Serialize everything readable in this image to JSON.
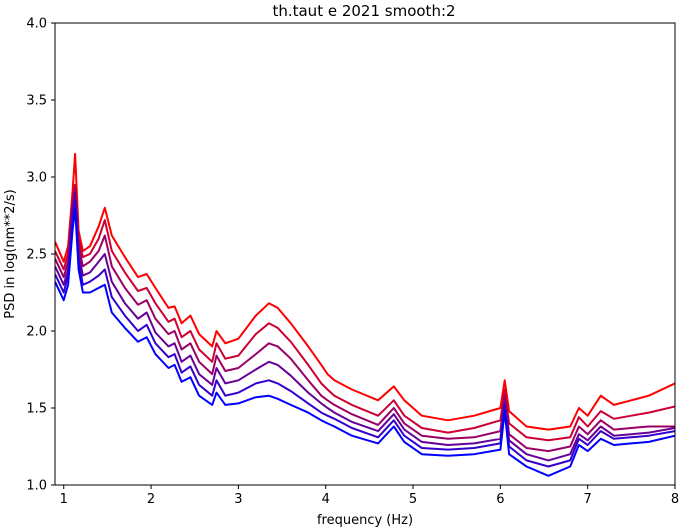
{
  "chart_data": {
    "type": "line",
    "title": "th.taut e 2021 smooth:2",
    "xlabel": "frequency (Hz)",
    "ylabel": "PSD in log(nm**2/s)",
    "xlim": [
      0.9,
      8
    ],
    "ylim": [
      1.0,
      4.0
    ],
    "grid": false,
    "legend": "none",
    "x_ticks": [
      1,
      2,
      3,
      4,
      5,
      6,
      7,
      8
    ],
    "x_tick_labels": [
      "1",
      "2",
      "3",
      "4",
      "5",
      "6",
      "7",
      "8"
    ],
    "y_ticks": [
      1.0,
      1.5,
      2.0,
      2.5,
      3.0,
      3.5,
      4.0
    ],
    "y_tick_labels": [
      "1.0",
      "1.5",
      "2.0",
      "2.5",
      "3.0",
      "3.5",
      "4.0"
    ],
    "x": [
      0.9,
      1.0,
      1.05,
      1.1,
      1.13,
      1.17,
      1.22,
      1.3,
      1.4,
      1.47,
      1.55,
      1.7,
      1.85,
      1.95,
      2.05,
      2.2,
      2.27,
      2.35,
      2.45,
      2.55,
      2.7,
      2.75,
      2.85,
      3.0,
      3.2,
      3.35,
      3.45,
      3.6,
      3.8,
      3.95,
      4.02,
      4.1,
      4.3,
      4.6,
      4.78,
      4.9,
      5.1,
      5.4,
      5.7,
      6.0,
      6.05,
      6.1,
      6.3,
      6.55,
      6.8,
      6.9,
      7.0,
      7.15,
      7.3,
      7.5,
      7.7,
      8.0
    ],
    "series": [
      {
        "color": "#ff0000",
        "values": [
          2.58,
          2.45,
          2.55,
          2.9,
          3.15,
          2.65,
          2.52,
          2.55,
          2.68,
          2.8,
          2.62,
          2.48,
          2.35,
          2.37,
          2.28,
          2.15,
          2.16,
          2.05,
          2.1,
          1.98,
          1.9,
          2.0,
          1.92,
          1.95,
          2.1,
          2.18,
          2.15,
          2.05,
          1.9,
          1.78,
          1.72,
          1.68,
          1.62,
          1.55,
          1.64,
          1.55,
          1.45,
          1.42,
          1.45,
          1.5,
          1.68,
          1.48,
          1.38,
          1.36,
          1.38,
          1.5,
          1.45,
          1.58,
          1.52,
          1.55,
          1.58,
          1.66
        ]
      },
      {
        "color": "#cc0033",
        "values": [
          2.52,
          2.4,
          2.5,
          2.85,
          2.95,
          2.6,
          2.48,
          2.5,
          2.6,
          2.72,
          2.52,
          2.38,
          2.26,
          2.28,
          2.18,
          2.06,
          2.08,
          1.96,
          2.0,
          1.88,
          1.8,
          1.92,
          1.82,
          1.84,
          1.98,
          2.05,
          2.02,
          1.93,
          1.78,
          1.66,
          1.62,
          1.58,
          1.52,
          1.45,
          1.55,
          1.45,
          1.37,
          1.34,
          1.37,
          1.42,
          1.62,
          1.4,
          1.31,
          1.29,
          1.31,
          1.44,
          1.38,
          1.48,
          1.43,
          1.45,
          1.47,
          1.51
        ]
      },
      {
        "color": "#990066",
        "values": [
          2.47,
          2.35,
          2.45,
          2.82,
          2.93,
          2.55,
          2.42,
          2.45,
          2.52,
          2.62,
          2.42,
          2.28,
          2.17,
          2.2,
          2.08,
          1.98,
          2.0,
          1.88,
          1.92,
          1.8,
          1.72,
          1.84,
          1.74,
          1.76,
          1.85,
          1.92,
          1.9,
          1.82,
          1.68,
          1.58,
          1.55,
          1.52,
          1.46,
          1.39,
          1.5,
          1.4,
          1.32,
          1.3,
          1.31,
          1.35,
          1.58,
          1.33,
          1.24,
          1.22,
          1.25,
          1.38,
          1.33,
          1.42,
          1.36,
          1.37,
          1.38,
          1.38
        ]
      },
      {
        "color": "#660099",
        "values": [
          2.42,
          2.3,
          2.4,
          2.78,
          2.9,
          2.5,
          2.36,
          2.38,
          2.45,
          2.5,
          2.32,
          2.18,
          2.08,
          2.12,
          1.99,
          1.9,
          1.92,
          1.8,
          1.84,
          1.72,
          1.65,
          1.76,
          1.66,
          1.68,
          1.75,
          1.8,
          1.78,
          1.71,
          1.6,
          1.53,
          1.5,
          1.47,
          1.41,
          1.35,
          1.46,
          1.36,
          1.28,
          1.26,
          1.27,
          1.3,
          1.55,
          1.29,
          1.2,
          1.16,
          1.2,
          1.33,
          1.29,
          1.38,
          1.32,
          1.33,
          1.34,
          1.37
        ]
      },
      {
        "color": "#3300cc",
        "values": [
          2.37,
          2.25,
          2.36,
          2.72,
          2.85,
          2.45,
          2.3,
          2.32,
          2.36,
          2.4,
          2.22,
          2.1,
          2.0,
          2.04,
          1.92,
          1.83,
          1.85,
          1.73,
          1.77,
          1.65,
          1.58,
          1.68,
          1.58,
          1.6,
          1.66,
          1.68,
          1.66,
          1.61,
          1.53,
          1.47,
          1.45,
          1.43,
          1.37,
          1.31,
          1.42,
          1.32,
          1.24,
          1.23,
          1.24,
          1.27,
          1.52,
          1.25,
          1.16,
          1.12,
          1.16,
          1.3,
          1.26,
          1.35,
          1.3,
          1.31,
          1.32,
          1.35
        ]
      },
      {
        "color": "#0000ff",
        "values": [
          2.32,
          2.2,
          2.3,
          2.65,
          2.8,
          2.4,
          2.25,
          2.25,
          2.28,
          2.3,
          2.12,
          2.02,
          1.93,
          1.96,
          1.85,
          1.76,
          1.78,
          1.67,
          1.7,
          1.58,
          1.52,
          1.6,
          1.52,
          1.53,
          1.57,
          1.58,
          1.56,
          1.52,
          1.47,
          1.42,
          1.4,
          1.38,
          1.32,
          1.27,
          1.38,
          1.28,
          1.2,
          1.19,
          1.2,
          1.23,
          1.48,
          1.2,
          1.12,
          1.06,
          1.12,
          1.26,
          1.22,
          1.3,
          1.26,
          1.27,
          1.28,
          1.32
        ]
      }
    ]
  }
}
